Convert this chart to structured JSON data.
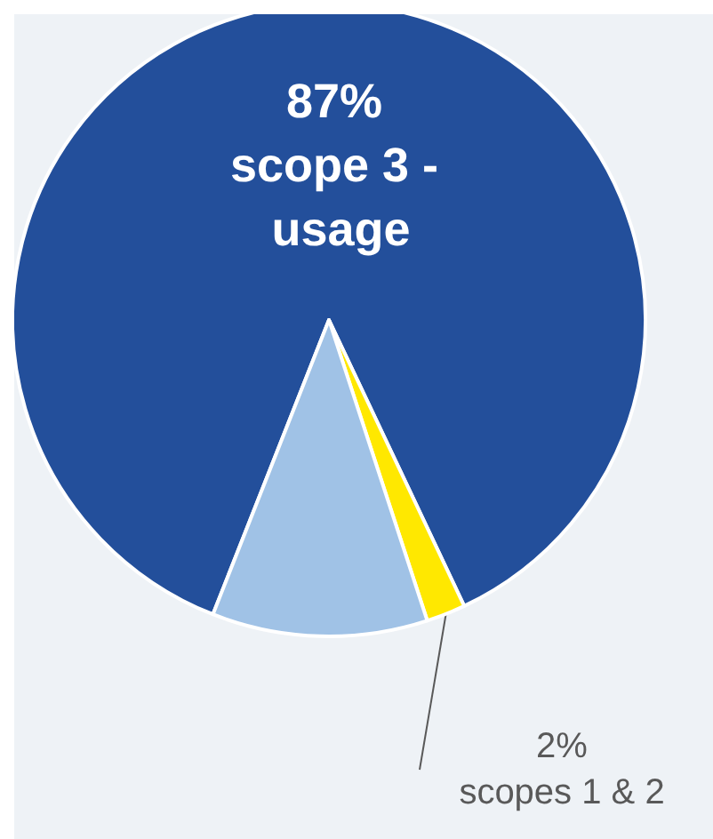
{
  "chart_data": {
    "type": "pie",
    "categories": [
      "scope 3 - usage",
      "scopes 1 & 2",
      null
    ],
    "values": [
      87,
      2,
      11
    ],
    "value_labels": [
      "87%",
      "2%",
      null
    ],
    "colors": [
      "#234f9b",
      "#ffe800",
      "#a0c2e6"
    ]
  }
}
